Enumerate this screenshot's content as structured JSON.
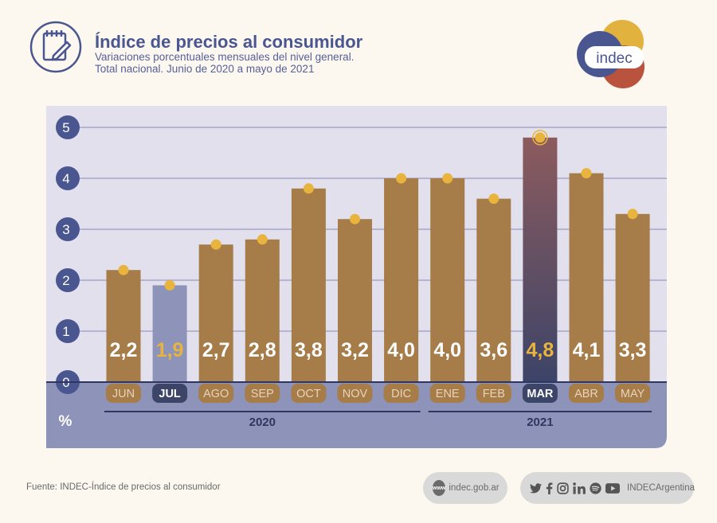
{
  "header": {
    "title": "Índice de precios al consumidor",
    "subtitle_line1": "Variaciones porcentuales mensuales del nivel general.",
    "subtitle_line2": "Total nacional. Junio de 2020 a mayo de 2021",
    "logo_text": "indec"
  },
  "chart_data": {
    "type": "bar",
    "categories": [
      "JUN",
      "JUL",
      "AGO",
      "SEP",
      "OCT",
      "NOV",
      "DIC",
      "ENE",
      "FEB",
      "MAR",
      "ABR",
      "MAY"
    ],
    "values": [
      2.2,
      1.9,
      2.7,
      2.8,
      3.8,
      3.2,
      4.0,
      4.0,
      3.6,
      4.8,
      4.1,
      3.3
    ],
    "value_labels": [
      "2,2",
      "1,9",
      "2,7",
      "2,8",
      "3,8",
      "3,2",
      "4,0",
      "4,0",
      "3,6",
      "4,8",
      "4,1",
      "3,3"
    ],
    "highlighted": [
      "JUL",
      "MAR"
    ],
    "yticks": [
      "0",
      "1",
      "2",
      "3",
      "4",
      "5"
    ],
    "ylim": [
      0,
      5
    ],
    "yunit": "%",
    "year_groups": [
      {
        "label": "2020",
        "from": "JUN",
        "to": "DIC"
      },
      {
        "label": "2021",
        "from": "ENE",
        "to": "MAY"
      }
    ],
    "grid": true,
    "colors": {
      "bar": "#a67c48",
      "bar_jul": "#8e94b9",
      "bar_mar_top": "#8c5b5e",
      "bar_mar_bottom": "#3c4468",
      "dot": "#e8b43e",
      "plot_bg": "#e3e0ee",
      "axis_band": "#8e94b9",
      "value_label": "#ffffff",
      "value_label_highlight": "#e8b43e"
    }
  },
  "footer": {
    "source": "Fuente: INDEC-Índice de precios al consumidor",
    "web_badge": "www",
    "website": "indec.gob.ar",
    "social_handle": "INDECArgentina"
  }
}
